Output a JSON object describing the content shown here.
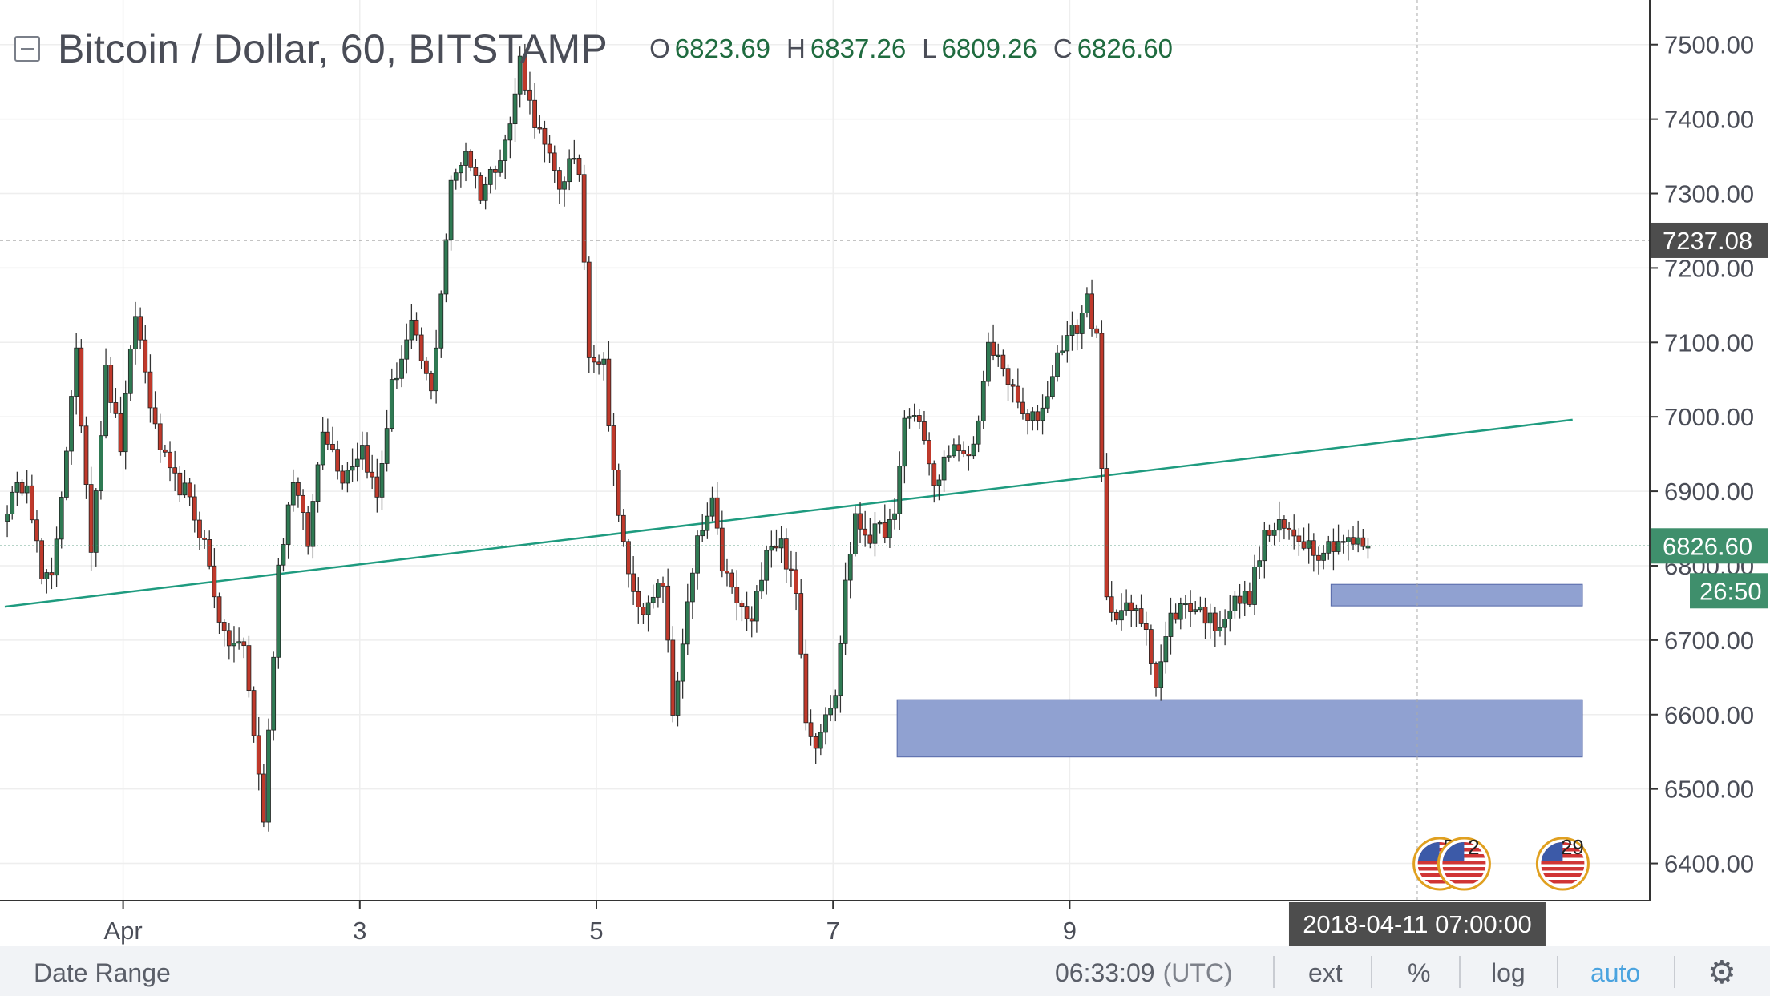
{
  "header": {
    "symbol": "Bitcoin / Dollar, 60, BITSTAMP",
    "ohlc": {
      "o_label": "O",
      "o": "6823.69",
      "h_label": "H",
      "h": "6837.26",
      "l_label": "L",
      "l": "6809.26",
      "c_label": "C",
      "c": "6826.60"
    }
  },
  "bottom_bar": {
    "date_range": "Date Range",
    "clock": "06:33:09",
    "timezone": "(UTC)",
    "ext": "ext",
    "percent": "%",
    "log": "log",
    "auto": "auto"
  },
  "colors": {
    "up": "#2f7a53",
    "down": "#c0392b",
    "trendline": "#1e9b7f",
    "zone": "#8a9ccf",
    "zone_border": "#5568a8",
    "price_badge": "#3f8f6c",
    "crosshair_badge": "#4d4d4d",
    "grid": "#eeeeee"
  },
  "chart_data": {
    "type": "candlestick",
    "title": "Bitcoin / Dollar, 60, BITSTAMP",
    "ylim": [
      6350,
      7560
    ],
    "y_ticks": [
      "6400.00",
      "6500.00",
      "6600.00",
      "6700.00",
      "6800.00",
      "6900.00",
      "7000.00",
      "7100.00",
      "7200.00",
      "7300.00",
      "7400.00",
      "7500.00"
    ],
    "x_tick_labels": [
      {
        "label": "Apr",
        "bar": 24
      },
      {
        "label": "3",
        "bar": 72
      },
      {
        "label": "5",
        "bar": 120
      },
      {
        "label": "7",
        "bar": 168
      },
      {
        "label": "9",
        "bar": 216
      }
    ],
    "bars_total": 320,
    "current_price": "6826.60",
    "current_price_value": 6826.6,
    "countdown": "26:50",
    "crosshair_price": "7237.08",
    "crosshair_price_value": 7237.08,
    "crosshair_date": "2018-04-11 07:00:00",
    "crosshair_bar": 286,
    "trendline": {
      "bar1": 0,
      "price1": 6745,
      "bar2": 318,
      "price2": 6996
    },
    "zones": [
      {
        "bar_start": 269,
        "bar_end": 320,
        "high": 6775,
        "low": 6746
      },
      {
        "bar_start": 181,
        "bar_end": 320,
        "high": 6620,
        "low": 6543
      }
    ],
    "events": [
      {
        "bar": 291,
        "label": "5"
      },
      {
        "bar": 296,
        "label": "2"
      },
      {
        "bar": 316,
        "label": "29"
      }
    ],
    "ohlc_last": {
      "open": 6823.69,
      "high": 6837.26,
      "low": 6809.26,
      "close": 6826.6
    },
    "close_path": [
      [
        0,
        6880
      ],
      [
        4,
        6920
      ],
      [
        7,
        6780
      ],
      [
        9,
        6780
      ],
      [
        14,
        7080
      ],
      [
        17,
        6830
      ],
      [
        20,
        7060
      ],
      [
        23,
        6960
      ],
      [
        26,
        7140
      ],
      [
        30,
        6980
      ],
      [
        33,
        6920
      ],
      [
        36,
        6900
      ],
      [
        40,
        6830
      ],
      [
        44,
        6700
      ],
      [
        48,
        6690
      ],
      [
        52,
        6460
      ],
      [
        55,
        6800
      ],
      [
        58,
        6920
      ],
      [
        61,
        6830
      ],
      [
        64,
        6990
      ],
      [
        68,
        6920
      ],
      [
        72,
        6960
      ],
      [
        75,
        6890
      ],
      [
        78,
        7040
      ],
      [
        82,
        7120
      ],
      [
        86,
        7030
      ],
      [
        90,
        7310
      ],
      [
        93,
        7360
      ],
      [
        96,
        7300
      ],
      [
        99,
        7340
      ],
      [
        102,
        7390
      ],
      [
        104,
        7480
      ],
      [
        106,
        7420
      ],
      [
        109,
        7360
      ],
      [
        112,
        7310
      ],
      [
        114,
        7340
      ],
      [
        116,
        7330
      ],
      [
        118,
        7090
      ],
      [
        121,
        7070
      ],
      [
        124,
        6860
      ],
      [
        127,
        6760
      ],
      [
        130,
        6740
      ],
      [
        133,
        6780
      ],
      [
        135,
        6600
      ],
      [
        137,
        6700
      ],
      [
        140,
        6830
      ],
      [
        143,
        6880
      ],
      [
        145,
        6800
      ],
      [
        148,
        6750
      ],
      [
        151,
        6720
      ],
      [
        154,
        6830
      ],
      [
        157,
        6830
      ],
      [
        160,
        6760
      ],
      [
        162,
        6600
      ],
      [
        164,
        6560
      ],
      [
        166,
        6610
      ],
      [
        168,
        6620
      ],
      [
        170,
        6780
      ],
      [
        172,
        6860
      ],
      [
        175,
        6840
      ],
      [
        178,
        6850
      ],
      [
        180,
        6860
      ],
      [
        182,
        7000
      ],
      [
        185,
        7000
      ],
      [
        188,
        6900
      ],
      [
        191,
        6960
      ],
      [
        194,
        6940
      ],
      [
        196,
        6960
      ],
      [
        199,
        7090
      ],
      [
        202,
        7070
      ],
      [
        204,
        7030
      ],
      [
        207,
        6990
      ],
      [
        210,
        7010
      ],
      [
        212,
        7060
      ],
      [
        214,
        7100
      ],
      [
        217,
        7120
      ],
      [
        219,
        7160
      ],
      [
        221,
        7100
      ],
      [
        223,
        6750
      ],
      [
        225,
        6740
      ],
      [
        228,
        6740
      ],
      [
        231,
        6720
      ],
      [
        233,
        6640
      ],
      [
        236,
        6730
      ],
      [
        239,
        6750
      ],
      [
        242,
        6740
      ],
      [
        245,
        6720
      ],
      [
        249,
        6750
      ],
      [
        252,
        6760
      ],
      [
        255,
        6840
      ],
      [
        258,
        6850
      ],
      [
        262,
        6840
      ],
      [
        266,
        6820
      ],
      [
        270,
        6835
      ],
      [
        273,
        6830
      ],
      [
        276,
        6827
      ]
    ]
  }
}
